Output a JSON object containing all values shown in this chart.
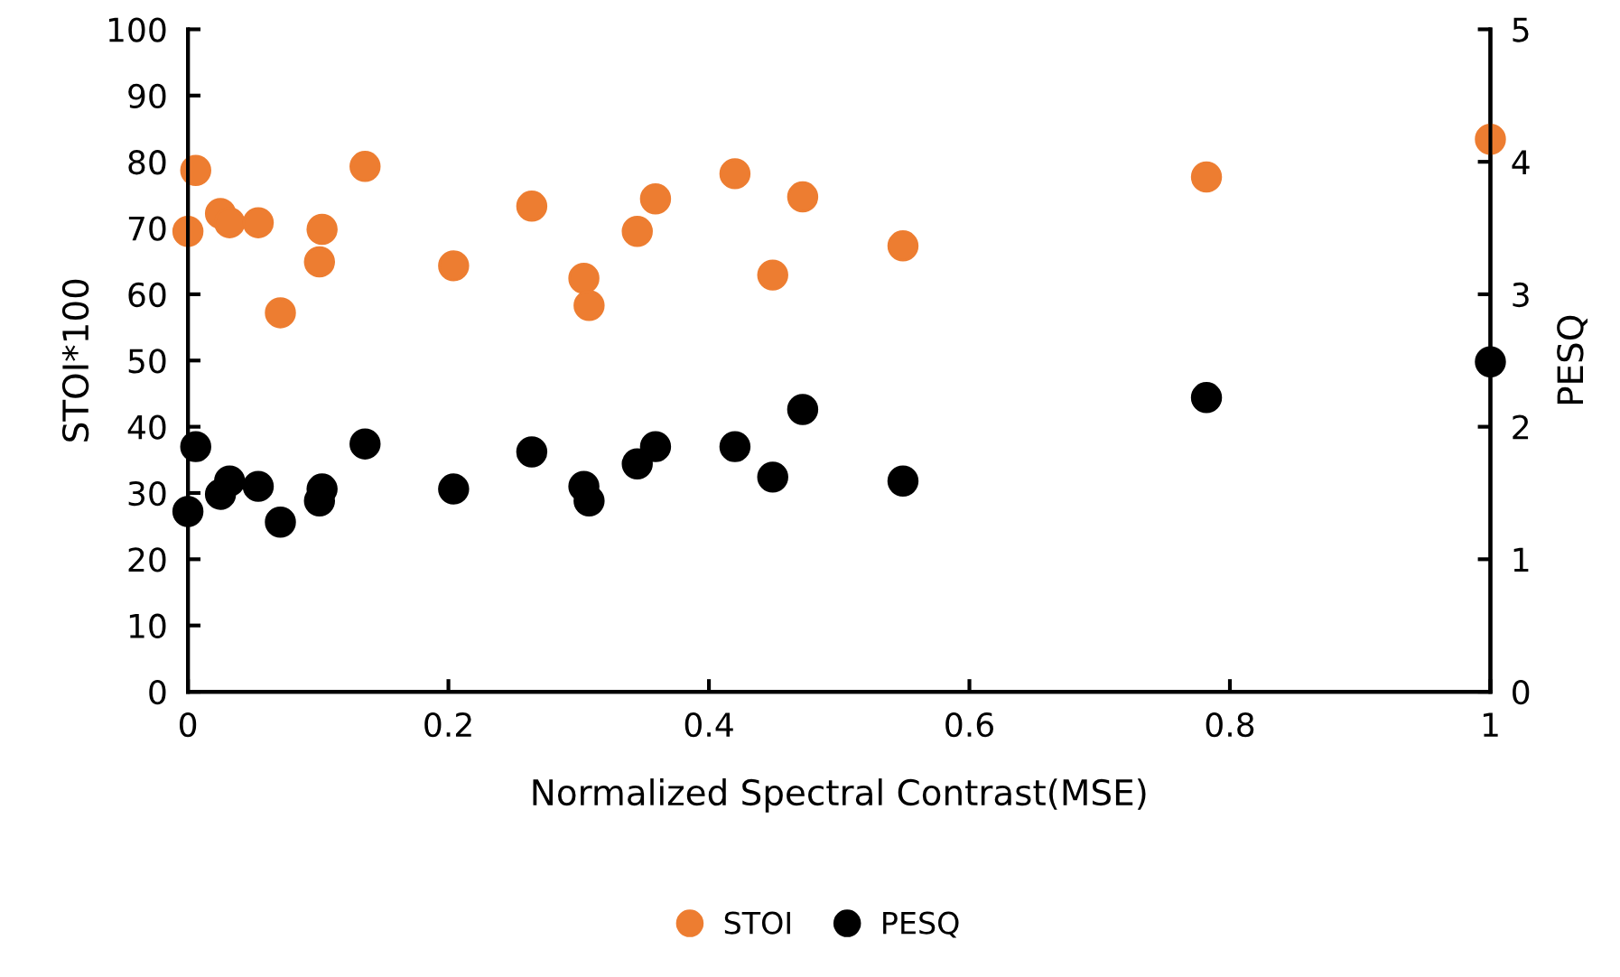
{
  "chart_data": {
    "type": "scatter",
    "xlabel": "Normalized Spectral Contrast(MSE)",
    "ylabel": "STOI*100",
    "y2label": "PESQ",
    "xlim": [
      0,
      1
    ],
    "xticks": [
      0,
      0.2,
      0.4,
      0.6,
      0.8,
      1
    ],
    "ylim": [
      0,
      100
    ],
    "yticks": [
      0,
      10,
      20,
      30,
      40,
      50,
      60,
      70,
      80,
      90,
      100
    ],
    "y2lim": [
      0,
      5
    ],
    "y2ticks": [
      0,
      1,
      2,
      3,
      4,
      5
    ],
    "marker": "circle",
    "legend": "bottom",
    "grid": false,
    "series": [
      {
        "name": "STOI",
        "color": "#ed7d31",
        "x": [
          0,
          0.006,
          0.025,
          0.032,
          0.054,
          0.071,
          0.103,
          0.101,
          0.136,
          0.204,
          0.264,
          0.304,
          0.308,
          0.345,
          0.359,
          0.42,
          0.449,
          0.472,
          0.549,
          0.782,
          1.0
        ],
        "values": [
          69.5,
          78.7,
          72.2,
          70.8,
          70.8,
          57.2,
          69.8,
          64.9,
          79.3,
          64.3,
          73.3,
          62.4,
          58.3,
          69.5,
          74.4,
          78.2,
          62.9,
          74.7,
          67.3,
          77.7,
          83.4
        ]
      },
      {
        "name": "PESQ",
        "color": "#000000",
        "axis": "y2",
        "x": [
          0,
          0.006,
          0.025,
          0.032,
          0.054,
          0.071,
          0.103,
          0.101,
          0.136,
          0.204,
          0.264,
          0.304,
          0.308,
          0.345,
          0.359,
          0.42,
          0.449,
          0.472,
          0.549,
          0.782,
          1.0
        ],
        "values": [
          1.36,
          1.85,
          1.49,
          1.59,
          1.55,
          1.28,
          1.53,
          1.44,
          1.87,
          1.53,
          1.81,
          1.55,
          1.44,
          1.72,
          1.85,
          1.85,
          1.62,
          2.13,
          1.59,
          2.22,
          2.49
        ]
      }
    ]
  }
}
